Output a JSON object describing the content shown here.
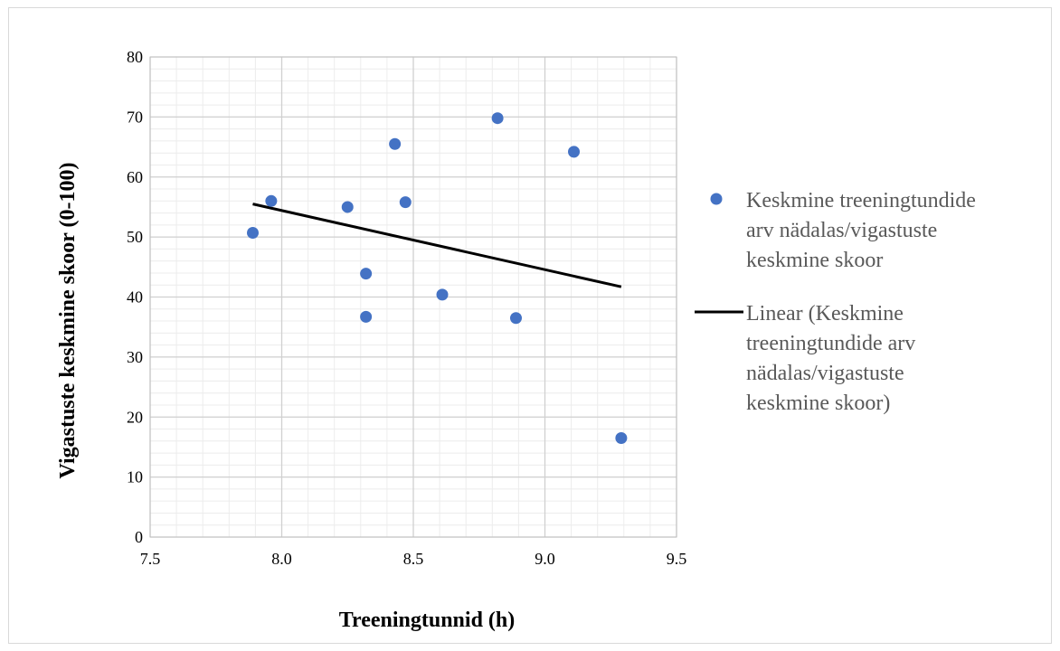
{
  "chart_data": {
    "type": "scatter",
    "title": "",
    "xlabel": "Treeningtunnid (h)",
    "ylabel": "Vigastuste keskmine skoor (0-100)",
    "xlim": [
      7.5,
      9.5
    ],
    "ylim": [
      0,
      80
    ],
    "x_ticks": [
      7.5,
      8.0,
      8.5,
      9.0,
      9.5
    ],
    "x_tick_labels": [
      "7.5",
      "8.0",
      "8.5",
      "9.0",
      "9.5"
    ],
    "y_ticks": [
      0,
      10,
      20,
      30,
      40,
      50,
      60,
      70,
      80
    ],
    "y_tick_labels": [
      "0",
      "10",
      "20",
      "30",
      "40",
      "50",
      "60",
      "70",
      "80"
    ],
    "grid": true,
    "legend_position": "right",
    "series": [
      {
        "name": "Keskmine treeningtundide arv nädalas/vigastuste keskmine skoor",
        "legend_lines": [
          "Keskmine treeningtundide",
          "arv nädalas/vigastuste",
          "keskmine skoor"
        ],
        "color": "#4472c4",
        "points": [
          {
            "x": 7.89,
            "y": 50.7
          },
          {
            "x": 7.96,
            "y": 56.0
          },
          {
            "x": 8.25,
            "y": 55.0
          },
          {
            "x": 8.32,
            "y": 43.9
          },
          {
            "x": 8.32,
            "y": 36.7
          },
          {
            "x": 8.43,
            "y": 65.5
          },
          {
            "x": 8.47,
            "y": 55.8
          },
          {
            "x": 8.61,
            "y": 40.4
          },
          {
            "x": 8.82,
            "y": 69.8
          },
          {
            "x": 8.89,
            "y": 36.5
          },
          {
            "x": 9.11,
            "y": 64.2
          },
          {
            "x": 9.29,
            "y": 16.5
          }
        ]
      }
    ],
    "trendline": {
      "name": "Linear (Keskmine treeningtundide arv nädalas/vigastuste keskmine skoor)",
      "legend_lines": [
        "Linear (Keskmine",
        "treeningtundide arv",
        "nädalas/vigastuste",
        "keskmine skoor)"
      ],
      "type": "linear",
      "color": "#000000",
      "start": {
        "x": 7.89,
        "y": 55.5
      },
      "end": {
        "x": 9.29,
        "y": 41.7
      }
    }
  }
}
